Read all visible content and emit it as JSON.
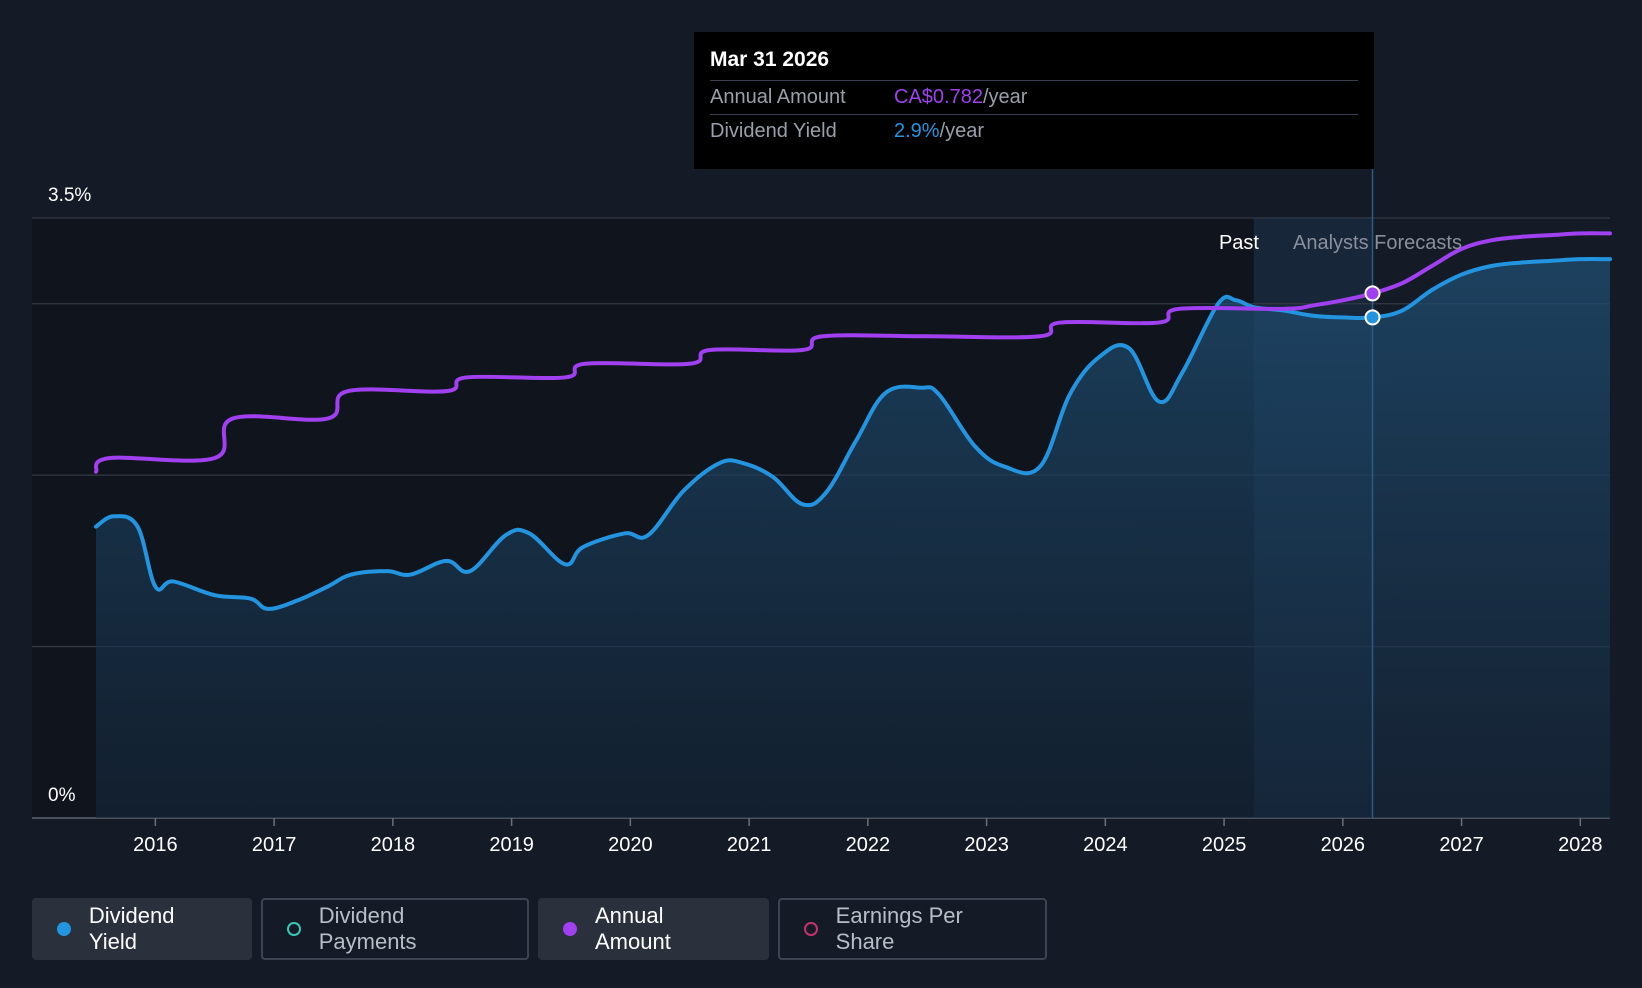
{
  "tooltip": {
    "date": "Mar 31 2026",
    "rows": [
      {
        "label": "Annual Amount",
        "value": "CA$0.782",
        "unit": "/year"
      },
      {
        "label": "Dividend Yield",
        "value": "2.9%",
        "unit": "/year"
      }
    ]
  },
  "legend": [
    {
      "label": "Dividend Yield",
      "active": true
    },
    {
      "label": "Dividend Payments",
      "active": false
    },
    {
      "label": "Annual Amount",
      "active": true
    },
    {
      "label": "Earnings Per Share",
      "active": false
    }
  ],
  "colors": {
    "background": "#151b26",
    "dividend_yield": "#2394df",
    "annual_amount": "#a040f0",
    "dividend_payments": "#39c6b4",
    "earnings_per_share": "#c2326b",
    "grid": "#3a404c",
    "tooltip_bg": "#000000"
  },
  "chart_data": {
    "type": "line",
    "y_axis": {
      "top_label": "3.5%",
      "bottom_label": "0%",
      "ylim": [
        0,
        3.5
      ],
      "gridlines": [
        0,
        1,
        2,
        3,
        3.5
      ]
    },
    "x_ticks": [
      "2016",
      "2017",
      "2018",
      "2019",
      "2020",
      "2021",
      "2022",
      "2023",
      "2024",
      "2025",
      "2026",
      "2027",
      "2028"
    ],
    "xlim": [
      2015.5,
      2028.25
    ],
    "region_labels": {
      "past": "Past",
      "forecast": "Analysts Forecasts"
    },
    "highlight_x": 2026.25,
    "series": [
      {
        "name": "Dividend Yield",
        "unit": "%",
        "x": [
          2015.5,
          2015.65,
          2015.85,
          2016.0,
          2016.15,
          2016.5,
          2016.8,
          2016.95,
          2017.2,
          2017.45,
          2017.65,
          2017.95,
          2018.15,
          2018.45,
          2018.65,
          2018.95,
          2019.15,
          2019.45,
          2019.6,
          2019.95,
          2020.15,
          2020.45,
          2020.75,
          2020.95,
          2021.2,
          2021.45,
          2021.65,
          2021.9,
          2022.15,
          2022.45,
          2022.6,
          2022.9,
          2023.15,
          2023.45,
          2023.7,
          2023.95,
          2024.2,
          2024.45,
          2024.65,
          2024.95,
          2025.1,
          2025.25,
          2025.5,
          2025.75,
          2026.0,
          2026.25,
          2026.5,
          2026.75,
          2027.0,
          2027.25,
          2027.5,
          2027.75,
          2028.0,
          2028.25
        ],
        "y": [
          1.7,
          1.76,
          1.7,
          1.35,
          1.38,
          1.3,
          1.28,
          1.22,
          1.27,
          1.35,
          1.42,
          1.44,
          1.42,
          1.5,
          1.44,
          1.65,
          1.66,
          1.48,
          1.58,
          1.66,
          1.65,
          1.91,
          2.07,
          2.07,
          1.99,
          1.83,
          1.9,
          2.2,
          2.48,
          2.51,
          2.47,
          2.17,
          2.05,
          2.05,
          2.47,
          2.69,
          2.74,
          2.43,
          2.6,
          3.0,
          3.02,
          2.98,
          2.96,
          2.93,
          2.92,
          2.92,
          2.96,
          3.08,
          3.17,
          3.22,
          3.24,
          3.25,
          3.26,
          3.26
        ]
      },
      {
        "name": "Annual Amount",
        "unit": "CA$/year",
        "x": [
          2015.5,
          2015.62,
          2016.5,
          2016.65,
          2017.45,
          2017.62,
          2018.45,
          2018.62,
          2019.45,
          2019.62,
          2020.5,
          2020.67,
          2021.45,
          2021.62,
          2022.5,
          2023.45,
          2023.62,
          2024.45,
          2024.62,
          2025.5,
          2025.75,
          2026.0,
          2026.25,
          2026.5,
          2026.75,
          2027.0,
          2027.25,
          2027.5,
          2027.75,
          2028.0,
          2028.25
        ],
        "y": [
          2.02,
          2.1,
          2.1,
          2.33,
          2.33,
          2.49,
          2.49,
          2.57,
          2.57,
          2.65,
          2.65,
          2.73,
          2.73,
          2.81,
          2.81,
          2.81,
          2.89,
          2.89,
          2.97,
          2.97,
          2.99,
          3.02,
          3.06,
          3.12,
          3.22,
          3.32,
          3.37,
          3.39,
          3.4,
          3.41,
          3.41
        ]
      }
    ],
    "highlight_values": {
      "Dividend Yield": 2.92,
      "Annual Amount": 3.06
    }
  }
}
